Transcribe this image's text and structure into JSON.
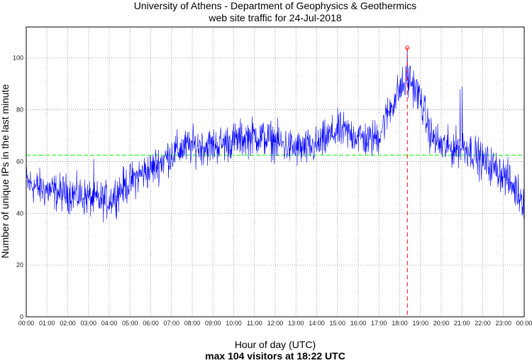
{
  "chart_data": {
    "type": "line",
    "title": "University of Athens - Department of Geophysics & Geothermics",
    "subtitle": "web site traffic for 24-Jul-2018",
    "xlabel": "Hour of day (UTC)",
    "footer": "max 104 visitors at 18:22 UTC",
    "ylabel": "Number of unique IPs in the last minute",
    "xlim": [
      0,
      24
    ],
    "ylim": [
      0,
      112
    ],
    "x_ticks": [
      "00:00",
      "01:00",
      "02:00",
      "03:00",
      "04:00",
      "05:00",
      "06:00",
      "07:00",
      "08:00",
      "09:00",
      "10:00",
      "11:00",
      "12:00",
      "13:00",
      "14:00",
      "15:00",
      "16:00",
      "17:00",
      "18:00",
      "19:00",
      "20:00",
      "21:00",
      "22:00",
      "23:00",
      "00:00"
    ],
    "y_ticks": [
      0,
      20,
      40,
      60,
      80,
      100
    ],
    "grid": true,
    "mean_line": 62.5,
    "max": {
      "value": 104,
      "hour": 18.367,
      "label": "18:22"
    },
    "series": [
      {
        "color": "#0000ff",
        "profile_hours": [
          0,
          0.5,
          1,
          1.5,
          2,
          2.5,
          3,
          3.5,
          4,
          4.5,
          5,
          5.5,
          6,
          6.5,
          7,
          7.5,
          8,
          8.5,
          9,
          9.5,
          10,
          10.5,
          11,
          11.5,
          12,
          12.5,
          13,
          13.5,
          14,
          14.5,
          15,
          15.5,
          16,
          16.5,
          17,
          17.5,
          18,
          18.5,
          19,
          19.5,
          20,
          20.5,
          21,
          21.5,
          22,
          22.5,
          23,
          23.5,
          24
        ],
        "profile_values": [
          52,
          50,
          49,
          48,
          48,
          47,
          46,
          45,
          45,
          49,
          52,
          55,
          57,
          60,
          63,
          65,
          66,
          66,
          66,
          67,
          68,
          69,
          70,
          69,
          68,
          66,
          65,
          65,
          66,
          69,
          72,
          71,
          70,
          68,
          70,
          80,
          88,
          92,
          84,
          70,
          66,
          65,
          66,
          64,
          60,
          58,
          55,
          50,
          45
        ],
        "noise": 5.5,
        "samples": 1440
      }
    ],
    "colors": {
      "line": "#0000ff",
      "mean": "#00ff00",
      "marker": "#ff0000",
      "grid": "#888888"
    }
  }
}
